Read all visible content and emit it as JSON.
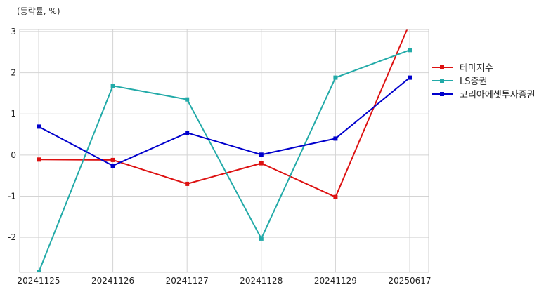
{
  "chart_data": {
    "type": "line",
    "unit_label": "(등락률, %)",
    "categories": [
      "20241125",
      "20241126",
      "20241127",
      "20241128",
      "20241129",
      "20250617"
    ],
    "y_ticks": [
      3,
      2,
      1,
      0,
      -1,
      -2
    ],
    "ylim": [
      -2.85,
      3.05
    ],
    "grid": true,
    "legend_position": "right",
    "series": [
      {
        "name": "테마지수",
        "color": "#dd1111",
        "values": [
          -0.11,
          -0.12,
          -0.7,
          -0.2,
          -1.02,
          3.2
        ]
      },
      {
        "name": "LS증권",
        "color": "#22aaa8",
        "values": [
          -2.85,
          1.68,
          1.35,
          -2.03,
          1.88,
          2.55
        ]
      },
      {
        "name": "코리아에셋투자증권",
        "color": "#0000cc",
        "values": [
          0.69,
          -0.26,
          0.54,
          0.01,
          0.4,
          1.88
        ]
      }
    ]
  }
}
